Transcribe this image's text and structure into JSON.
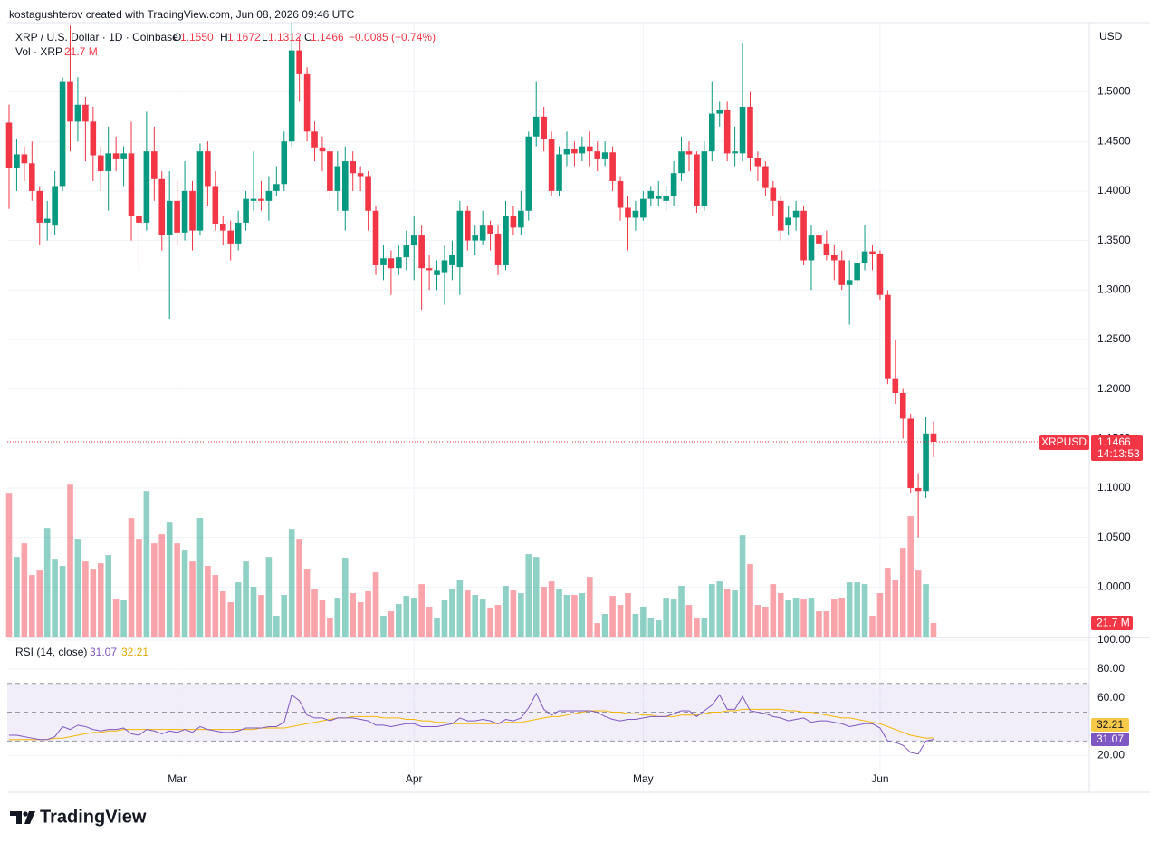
{
  "header": {
    "credit": "kostagushterov created with TradingView.com, Jun 08, 2026 09:46 UTC",
    "logo": "TradingView"
  },
  "chart_data": {
    "type": "candlestick",
    "symbol": "XRP / U.S. Dollar · 1D · Coinbase",
    "legend": {
      "items": [
        {
          "key": "O",
          "value": "1.1550"
        },
        {
          "key": "H",
          "value": "1.1672"
        },
        {
          "key": "L",
          "value": "1.1312"
        },
        {
          "key": "C",
          "value": "1.1466"
        }
      ],
      "change": "−0.0085 (−0.74%)"
    },
    "currency": "USD",
    "categories": [
      null,
      null,
      null,
      null,
      null,
      null,
      null,
      null,
      null,
      null,
      null,
      null,
      null,
      null,
      null,
      null,
      null,
      null,
      null,
      null,
      null,
      null,
      "Mar",
      null,
      null,
      null,
      null,
      null,
      null,
      null,
      null,
      null,
      null,
      null,
      null,
      null,
      null,
      null,
      null,
      null,
      null,
      null,
      null,
      null,
      null,
      null,
      null,
      null,
      null,
      null,
      null,
      null,
      null,
      "Apr",
      null,
      null,
      null,
      null,
      null,
      null,
      null,
      null,
      null,
      null,
      null,
      null,
      null,
      null,
      null,
      null,
      null,
      null,
      null,
      null,
      null,
      null,
      null,
      null,
      null,
      null,
      null,
      null,
      null,
      "May",
      null,
      null,
      null,
      null,
      null,
      null,
      null,
      null,
      null,
      null,
      null,
      null,
      null,
      null,
      null,
      null,
      null,
      null,
      null,
      null,
      null,
      null,
      null,
      null,
      null,
      null,
      null,
      null,
      null,
      null,
      "Jun",
      null,
      null,
      null,
      null,
      null,
      null,
      null
    ],
    "open": [
      1.469,
      1.423,
      1.437,
      1.428,
      1.4,
      1.368,
      1.365,
      1.405,
      1.51,
      1.47,
      1.487,
      1.47,
      1.436,
      1.42,
      1.438,
      1.432,
      1.438,
      1.375,
      1.368,
      1.44,
      1.412,
      1.356,
      1.39,
      1.358,
      1.4,
      1.36,
      1.44,
      1.405,
      1.367,
      1.36,
      1.347,
      1.368,
      1.39,
      1.392,
      1.39,
      1.4,
      1.407,
      1.45,
      1.542,
      1.518,
      1.46,
      1.444,
      1.44,
      1.4,
      1.38,
      1.43,
      1.418,
      1.415,
      1.38,
      1.325,
      1.332,
      1.322,
      1.333,
      1.345,
      1.355,
      1.322,
      1.315,
      1.318,
      1.325,
      1.323,
      1.38,
      1.35,
      1.35,
      1.365,
      1.357,
      1.325,
      1.375,
      1.363,
      1.38,
      1.455,
      1.475,
      1.452,
      1.4,
      1.437,
      1.442,
      1.438,
      1.445,
      1.44,
      1.432,
      1.439,
      1.41,
      1.383,
      1.373,
      1.373,
      1.392,
      1.392,
      1.39,
      1.395,
      1.418,
      1.44,
      1.437,
      1.385,
      1.44,
      1.478,
      1.482,
      1.438,
      1.438,
      1.485,
      1.433,
      1.425,
      1.403,
      1.39,
      1.365,
      1.373,
      1.38,
      1.33,
      1.355,
      1.347,
      1.335,
      1.33,
      1.305,
      1.31,
      1.327,
      1.339,
      1.336,
      1.295,
      1.21,
      1.196,
      1.17,
      1.1,
      1.097,
      1.155
    ],
    "high": [
      1.487,
      1.452,
      1.445,
      1.45,
      1.405,
      1.39,
      1.42,
      1.515,
      1.567,
      1.515,
      1.495,
      1.485,
      1.445,
      1.465,
      1.455,
      1.445,
      1.47,
      1.38,
      1.48,
      1.465,
      1.42,
      1.42,
      1.41,
      1.43,
      1.41,
      1.448,
      1.45,
      1.42,
      1.375,
      1.37,
      1.38,
      1.4,
      1.44,
      1.41,
      1.415,
      1.425,
      1.46,
      1.57,
      1.555,
      1.525,
      1.47,
      1.455,
      1.445,
      1.44,
      1.445,
      1.44,
      1.425,
      1.42,
      1.385,
      1.345,
      1.34,
      1.345,
      1.36,
      1.375,
      1.365,
      1.335,
      1.33,
      1.345,
      1.35,
      1.39,
      1.385,
      1.365,
      1.38,
      1.37,
      1.365,
      1.39,
      1.385,
      1.4,
      1.46,
      1.51,
      1.485,
      1.46,
      1.445,
      1.46,
      1.45,
      1.455,
      1.46,
      1.45,
      1.45,
      1.445,
      1.415,
      1.395,
      1.39,
      1.4,
      1.405,
      1.41,
      1.405,
      1.43,
      1.455,
      1.45,
      1.44,
      1.45,
      1.51,
      1.49,
      1.49,
      1.465,
      1.549,
      1.5,
      1.44,
      1.43,
      1.41,
      1.395,
      1.385,
      1.39,
      1.385,
      1.365,
      1.36,
      1.36,
      1.345,
      1.34,
      1.33,
      1.34,
      1.365,
      1.345,
      1.34,
      1.3,
      1.25,
      1.2,
      1.175,
      1.115,
      1.172,
      1.1672
    ],
    "low": [
      1.382,
      1.4,
      1.41,
      1.39,
      1.345,
      1.35,
      1.355,
      1.4,
      1.44,
      1.45,
      1.43,
      1.41,
      1.4,
      1.38,
      1.42,
      1.405,
      1.35,
      1.32,
      1.36,
      1.39,
      1.34,
      1.271,
      1.345,
      1.35,
      1.34,
      1.355,
      1.385,
      1.36,
      1.345,
      1.33,
      1.34,
      1.36,
      1.38,
      1.38,
      1.37,
      1.395,
      1.4,
      1.445,
      1.49,
      1.45,
      1.43,
      1.42,
      1.39,
      1.38,
      1.36,
      1.4,
      1.4,
      1.36,
      1.315,
      1.31,
      1.295,
      1.315,
      1.32,
      1.31,
      1.28,
      1.3,
      1.3,
      1.285,
      1.31,
      1.295,
      1.34,
      1.335,
      1.345,
      1.34,
      1.315,
      1.32,
      1.355,
      1.355,
      1.37,
      1.445,
      1.44,
      1.395,
      1.395,
      1.425,
      1.425,
      1.43,
      1.425,
      1.42,
      1.425,
      1.4,
      1.37,
      1.34,
      1.36,
      1.37,
      1.385,
      1.385,
      1.38,
      1.385,
      1.41,
      1.42,
      1.378,
      1.38,
      1.43,
      1.465,
      1.43,
      1.425,
      1.43,
      1.42,
      1.41,
      1.395,
      1.375,
      1.35,
      1.355,
      1.36,
      1.325,
      1.3,
      1.335,
      1.33,
      1.31,
      1.3,
      1.265,
      1.3,
      1.32,
      1.32,
      1.29,
      1.205,
      1.185,
      1.15,
      1.095,
      1.05,
      1.09,
      1.1312
    ],
    "close": [
      1.423,
      1.437,
      1.428,
      1.4,
      1.368,
      1.372,
      1.405,
      1.51,
      1.47,
      1.487,
      1.47,
      1.436,
      1.42,
      1.438,
      1.432,
      1.438,
      1.375,
      1.368,
      1.44,
      1.412,
      1.356,
      1.39,
      1.358,
      1.4,
      1.36,
      1.44,
      1.405,
      1.367,
      1.36,
      1.347,
      1.368,
      1.392,
      1.392,
      1.39,
      1.4,
      1.407,
      1.45,
      1.542,
      1.518,
      1.46,
      1.444,
      1.44,
      1.4,
      1.425,
      1.43,
      1.418,
      1.415,
      1.38,
      1.325,
      1.332,
      1.322,
      1.333,
      1.345,
      1.355,
      1.322,
      1.32,
      1.32,
      1.33,
      1.335,
      1.38,
      1.35,
      1.355,
      1.365,
      1.357,
      1.325,
      1.375,
      1.363,
      1.38,
      1.455,
      1.475,
      1.452,
      1.4,
      1.437,
      1.442,
      1.438,
      1.445,
      1.44,
      1.432,
      1.439,
      1.41,
      1.383,
      1.373,
      1.38,
      1.392,
      1.4,
      1.395,
      1.395,
      1.418,
      1.44,
      1.437,
      1.385,
      1.44,
      1.478,
      1.482,
      1.438,
      1.44,
      1.485,
      1.433,
      1.425,
      1.403,
      1.39,
      1.36,
      1.373,
      1.38,
      1.33,
      1.355,
      1.347,
      1.335,
      1.33,
      1.305,
      1.31,
      1.327,
      1.339,
      1.336,
      1.295,
      1.21,
      1.196,
      1.17,
      1.1,
      1.097,
      1.155,
      1.1466
    ],
    "up_color": "#089981",
    "down_color": "#f23645",
    "ylim": [
      0.95,
      1.57
    ],
    "yticks": [
      {
        "value": 1.0,
        "label": "1.0000"
      },
      {
        "value": 1.05,
        "label": "1.0500"
      },
      {
        "value": 1.1,
        "label": "1.1000"
      },
      {
        "value": 1.15,
        "label": "1.1500"
      },
      {
        "value": 1.2,
        "label": "1.2000"
      },
      {
        "value": 1.25,
        "label": "1.2500"
      },
      {
        "value": 1.3,
        "label": "1.3000"
      },
      {
        "value": 1.35,
        "label": "1.3500"
      },
      {
        "value": 1.4,
        "label": "1.4000"
      },
      {
        "value": 1.45,
        "label": "1.4500"
      },
      {
        "value": 1.5,
        "label": "1.5000"
      }
    ],
    "grid": true,
    "last_price": {
      "symbol": "XRPUSD",
      "label": "1.1466",
      "countdown": "14:13:53"
    },
    "volume": {
      "name": "Vol · XRP",
      "label": "21.7 M",
      "ylim": [
        0,
        310
      ],
      "values": [
        228.6,
        127.3,
        149.0,
        98.4,
        105.6,
        173.6,
        124.4,
        112.9,
        243.1,
        156.3,
        120.1,
        108.5,
        117.2,
        130.2,
        59.3,
        57.9,
        189.6,
        156.3,
        233.0,
        149.0,
        163.5,
        182.3,
        149.0,
        138.9,
        120.1,
        189.6,
        112.9,
        98.4,
        72.4,
        55.0,
        86.8,
        120.1,
        79.6,
        66.6,
        127.3,
        33.3,
        66.6,
        172.2,
        156.3,
        108.5,
        76.7,
        57.9,
        30.4,
        62.2,
        125.9,
        69.5,
        55.0,
        72.4,
        102.7,
        33.3,
        40.5,
        52.1,
        65.1,
        62.2,
        83.9,
        47.8,
        28.9,
        57.9,
        76.7,
        91.2,
        73.8,
        66.6,
        59.3,
        44.9,
        50.6,
        81.0,
        73.8,
        69.5,
        131.7,
        127.3,
        79.6,
        88.3,
        76.7,
        66.6,
        66.6,
        69.5,
        95.5,
        21.7,
        36.2,
        65.1,
        50.6,
        69.5,
        36.2,
        47.8,
        30.4,
        26.0,
        62.2,
        59.3,
        81.0,
        50.6,
        28.9,
        30.4,
        83.9,
        88.3,
        76.7,
        73.8,
        162.1,
        115.8,
        50.6,
        47.8,
        83.9,
        69.5,
        57.9,
        62.2,
        59.3,
        62.2,
        40.5,
        40.5,
        59.3,
        62.2,
        86.8,
        86.8,
        83.9,
        33.3,
        69.5,
        110.0,
        91.2,
        141.8,
        192.5,
        105.6,
        83.9,
        21.7
      ]
    },
    "rsi": {
      "name": "RSI (14, close)",
      "color": "#7e57c2",
      "ma_color": "#f2b705",
      "value_label": "31.07",
      "ma_label": "32.21",
      "values": [
        34,
        34,
        33,
        32,
        31,
        31,
        33,
        40,
        38,
        41,
        40,
        38,
        37,
        38,
        38,
        39,
        35,
        34,
        38,
        37,
        35,
        37,
        36,
        38,
        36,
        40,
        38,
        37,
        36,
        36,
        37,
        39,
        39,
        39,
        40,
        40,
        43,
        62,
        58,
        48,
        46,
        46,
        44,
        46,
        46,
        46,
        45,
        44,
        41,
        41,
        40,
        41,
        42,
        42,
        40,
        40,
        40,
        41,
        42,
        46,
        44,
        44,
        45,
        44,
        42,
        45,
        44,
        46,
        53,
        63,
        52,
        48,
        51,
        51,
        51,
        51,
        51,
        50,
        47,
        45,
        44,
        45,
        45,
        46,
        47,
        47,
        47,
        49,
        51,
        51,
        47,
        51,
        55,
        62,
        52,
        52,
        61,
        51,
        50,
        49,
        47,
        46,
        44,
        45,
        46,
        43,
        44,
        44,
        43,
        42,
        40,
        41,
        42,
        42,
        39,
        30,
        29,
        27,
        22,
        21,
        30,
        31.07
      ],
      "ma_values": [
        31,
        31,
        31,
        31,
        31,
        31,
        32,
        32,
        33,
        34,
        35,
        36,
        36,
        37,
        37,
        38,
        38,
        38,
        38,
        38,
        38,
        38,
        38,
        38,
        38,
        38,
        38,
        38,
        38,
        38,
        38,
        38,
        38,
        39,
        39,
        39,
        39,
        40,
        41,
        42,
        43,
        44,
        45,
        46,
        46,
        47,
        47,
        47,
        47,
        46,
        46,
        46,
        45,
        45,
        44,
        44,
        43,
        43,
        42,
        42,
        42,
        42,
        42,
        42,
        42,
        43,
        43,
        43,
        44,
        45,
        46,
        47,
        47,
        48,
        49,
        50,
        51,
        51,
        51,
        50,
        50,
        49,
        49,
        48,
        48,
        47,
        47,
        47,
        48,
        48,
        48,
        49,
        50,
        50,
        51,
        51,
        52,
        52,
        52,
        52,
        52,
        52,
        51,
        51,
        50,
        50,
        49,
        48,
        47,
        46,
        46,
        45,
        44,
        43,
        42,
        40,
        38,
        36,
        34,
        33,
        32,
        32.21
      ],
      "ylim": [
        -5.6,
        101.9
      ],
      "yticks": [
        {
          "value": 20,
          "label": "20.00"
        },
        {
          "value": 60,
          "label": "60.00"
        },
        {
          "value": 80,
          "label": "80.00"
        },
        {
          "value": 100,
          "label": "100.00"
        }
      ],
      "bands": [
        70,
        50,
        30
      ]
    }
  }
}
